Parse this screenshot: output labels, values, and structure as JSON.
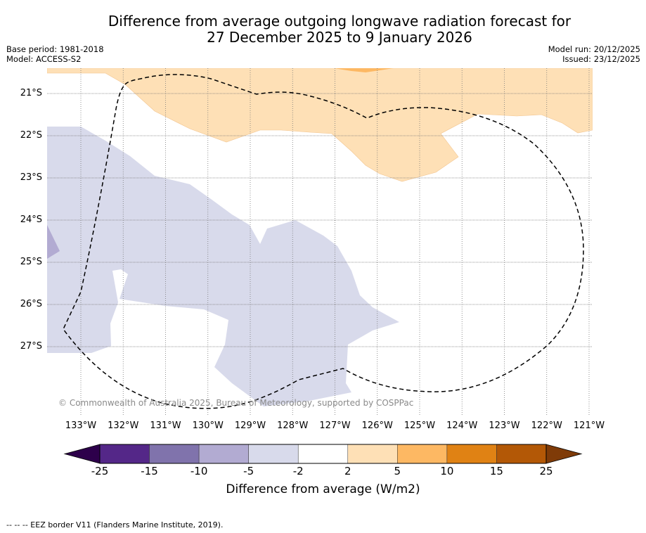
{
  "header": {
    "title_line1": "Difference from average outgoing longwave radiation forecast for",
    "title_line2": "27 December 2025 to 9 January 2026",
    "base_period": "Base period: 1981-2018",
    "model": "Model: ACCESS-S2",
    "model_run": "Model run: 20/12/2025",
    "issued": "Issued: 23/12/2025"
  },
  "map": {
    "lat_labels": [
      "21°S",
      "22°S",
      "23°S",
      "24°S",
      "25°S",
      "26°S",
      "27°S"
    ],
    "lon_labels": [
      "133°W",
      "132°W",
      "131°W",
      "130°W",
      "129°W",
      "128°W",
      "127°W",
      "126°W",
      "125°W",
      "124°W",
      "123°W",
      "122°W",
      "121°W"
    ],
    "lat_range": [
      -28.5,
      -20.4
    ],
    "lon_range": [
      -133.8,
      -120.9
    ],
    "copyright": "© Commonwealth of Australia 2025, Bureau of Meteorology, supported by COSPPac",
    "layers": [
      {
        "name": "positive-2-to-5",
        "color": "#fee0b6"
      },
      {
        "name": "positive-5-to-10",
        "color": "#fdb863"
      },
      {
        "name": "negative-2-to-5",
        "color": "#d8daeb"
      },
      {
        "name": "negative-5-to-10",
        "color": "#b2abd2"
      }
    ],
    "eez_border": "dashed"
  },
  "colorbar": {
    "label": "Difference from average (W/m2)",
    "ticks": [
      "-25",
      "-15",
      "-10",
      "-5",
      "-2",
      "2",
      "5",
      "10",
      "15",
      "25"
    ],
    "under_color": "#2d004b",
    "over_color": "#7f3b08",
    "segments": [
      {
        "from": -25,
        "to": -15,
        "color": "#542788"
      },
      {
        "from": -15,
        "to": -10,
        "color": "#8073ac"
      },
      {
        "from": -10,
        "to": -5,
        "color": "#b2abd2"
      },
      {
        "from": -5,
        "to": -2,
        "color": "#d8daeb"
      },
      {
        "from": -2,
        "to": 2,
        "color": "#ffffff"
      },
      {
        "from": 2,
        "to": 5,
        "color": "#fee0b6"
      },
      {
        "from": 5,
        "to": 10,
        "color": "#fdb863"
      },
      {
        "from": 10,
        "to": 15,
        "color": "#e08214"
      },
      {
        "from": 15,
        "to": 25,
        "color": "#b35806"
      }
    ]
  },
  "footnote": "--  --  -- EEZ border V11 (Flanders Marine Institute, 2019)."
}
